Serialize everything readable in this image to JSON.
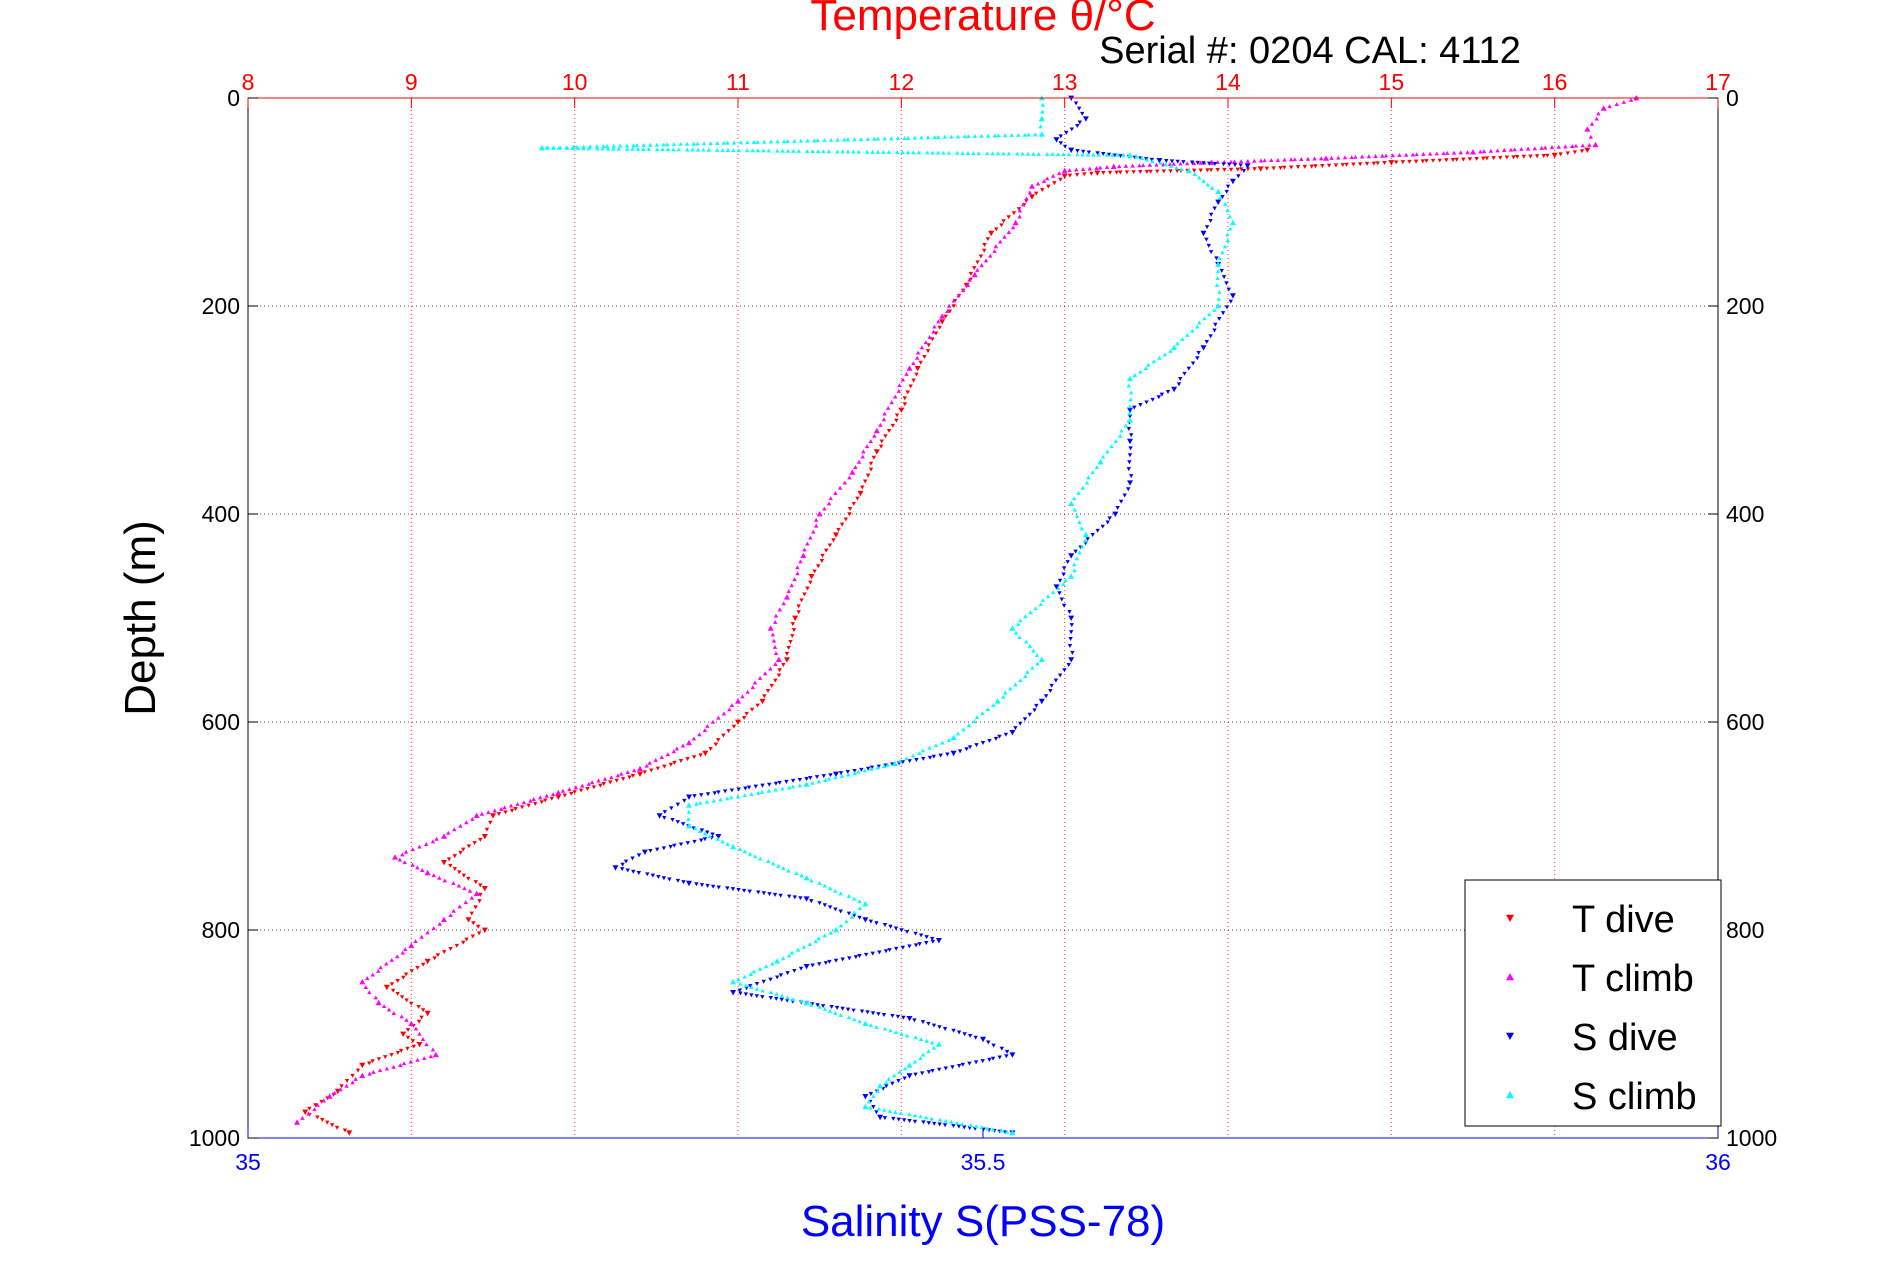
{
  "chart_data": {
    "type": "scatter",
    "title": "Temperature θ/°C",
    "subtitle": "Serial #: 0204  CAL: 4112",
    "xlabel": "Salinity S(PSS-78)",
    "ylabel": "Depth (m)",
    "temperature_axis": {
      "position": "top",
      "range": [
        8,
        17
      ],
      "ticks": [
        8,
        9,
        10,
        11,
        12,
        13,
        14,
        15,
        16,
        17
      ],
      "color": "#ff0000"
    },
    "salinity_axis": {
      "position": "bottom",
      "range": [
        35,
        36
      ],
      "ticks": [
        35,
        35.5,
        36
      ],
      "color": "#0000ff"
    },
    "depth_axis": {
      "range": [
        0,
        1000
      ],
      "reversed": true,
      "ticks": [
        0,
        200,
        400,
        600,
        800,
        1000
      ],
      "color": "#000000"
    },
    "grid": true,
    "legend_position": "bottom-right",
    "series": [
      {
        "name": "T dive",
        "axis": "temperature",
        "color": "#ff0000",
        "marker": "triangle-down",
        "points": [
          [
            16.2,
            50
          ],
          [
            16.0,
            55
          ],
          [
            15.0,
            62
          ],
          [
            14.2,
            68
          ],
          [
            13.2,
            72
          ],
          [
            13.0,
            75
          ],
          [
            12.8,
            95
          ],
          [
            12.55,
            130
          ],
          [
            12.4,
            180
          ],
          [
            12.25,
            215
          ],
          [
            12.1,
            260
          ],
          [
            12.0,
            300
          ],
          [
            11.85,
            340
          ],
          [
            11.75,
            380
          ],
          [
            11.6,
            420
          ],
          [
            11.45,
            460
          ],
          [
            11.35,
            500
          ],
          [
            11.3,
            540
          ],
          [
            11.15,
            580
          ],
          [
            11.0,
            600
          ],
          [
            10.8,
            630
          ],
          [
            10.4,
            650
          ],
          [
            9.9,
            672
          ],
          [
            9.5,
            690
          ],
          [
            9.45,
            710
          ],
          [
            9.2,
            735
          ],
          [
            9.45,
            760
          ],
          [
            9.35,
            790
          ],
          [
            9.45,
            800
          ],
          [
            9.1,
            830
          ],
          [
            8.85,
            855
          ],
          [
            9.1,
            880
          ],
          [
            8.95,
            900
          ],
          [
            9.05,
            910
          ],
          [
            8.7,
            930
          ],
          [
            8.55,
            955
          ],
          [
            8.35,
            975
          ],
          [
            8.62,
            995
          ]
        ]
      },
      {
        "name": "T climb",
        "axis": "temperature",
        "color": "#ff00ff",
        "marker": "triangle-up",
        "points": [
          [
            16.5,
            0
          ],
          [
            16.3,
            10
          ],
          [
            16.2,
            30
          ],
          [
            16.25,
            45
          ],
          [
            15.5,
            52
          ],
          [
            14.6,
            58
          ],
          [
            13.9,
            62
          ],
          [
            13.3,
            66
          ],
          [
            13.0,
            70
          ],
          [
            12.8,
            85
          ],
          [
            12.7,
            120
          ],
          [
            12.45,
            170
          ],
          [
            12.25,
            210
          ],
          [
            12.05,
            260
          ],
          [
            11.85,
            320
          ],
          [
            11.7,
            360
          ],
          [
            11.5,
            400
          ],
          [
            11.4,
            440
          ],
          [
            11.3,
            480
          ],
          [
            11.2,
            510
          ],
          [
            11.25,
            540
          ],
          [
            11.0,
            580
          ],
          [
            10.7,
            620
          ],
          [
            10.4,
            645
          ],
          [
            9.9,
            668
          ],
          [
            9.4,
            690
          ],
          [
            9.2,
            710
          ],
          [
            8.9,
            730
          ],
          [
            9.1,
            745
          ],
          [
            9.4,
            765
          ],
          [
            9.2,
            790
          ],
          [
            9.0,
            815
          ],
          [
            8.7,
            850
          ],
          [
            8.8,
            870
          ],
          [
            9.0,
            890
          ],
          [
            9.15,
            920
          ],
          [
            8.7,
            940
          ],
          [
            8.5,
            960
          ],
          [
            8.3,
            985
          ]
        ]
      },
      {
        "name": "S dive",
        "axis": "salinity",
        "color": "#0000ff",
        "marker": "triangle-down",
        "points": [
          [
            35.56,
            0
          ],
          [
            35.57,
            20
          ],
          [
            35.55,
            40
          ],
          [
            35.56,
            50
          ],
          [
            35.62,
            60
          ],
          [
            35.68,
            65
          ],
          [
            35.67,
            80
          ],
          [
            35.66,
            100
          ],
          [
            35.65,
            130
          ],
          [
            35.66,
            160
          ],
          [
            35.67,
            190
          ],
          [
            35.65,
            240
          ],
          [
            35.63,
            280
          ],
          [
            35.6,
            300
          ],
          [
            35.6,
            330
          ],
          [
            35.6,
            370
          ],
          [
            35.59,
            400
          ],
          [
            35.56,
            440
          ],
          [
            35.55,
            470
          ],
          [
            35.56,
            500
          ],
          [
            35.56,
            540
          ],
          [
            35.54,
            580
          ],
          [
            35.52,
            610
          ],
          [
            35.48,
            630
          ],
          [
            35.4,
            650
          ],
          [
            35.3,
            672
          ],
          [
            35.28,
            690
          ],
          [
            35.32,
            710
          ],
          [
            35.27,
            725
          ],
          [
            35.25,
            740
          ],
          [
            35.3,
            755
          ],
          [
            35.38,
            770
          ],
          [
            35.42,
            790
          ],
          [
            35.47,
            810
          ],
          [
            35.38,
            835
          ],
          [
            35.33,
            860
          ],
          [
            35.45,
            885
          ],
          [
            35.5,
            905
          ],
          [
            35.52,
            920
          ],
          [
            35.45,
            940
          ],
          [
            35.42,
            960
          ],
          [
            35.43,
            980
          ],
          [
            35.52,
            995
          ]
        ]
      },
      {
        "name": "S climb",
        "axis": "salinity",
        "color": "#00ffff",
        "marker": "triangle-up",
        "points": [
          [
            35.54,
            0
          ],
          [
            35.54,
            20
          ],
          [
            35.54,
            35
          ],
          [
            35.2,
            48
          ],
          [
            35.6,
            55
          ],
          [
            35.64,
            70
          ],
          [
            35.66,
            90
          ],
          [
            35.67,
            120
          ],
          [
            35.66,
            160
          ],
          [
            35.66,
            200
          ],
          [
            35.63,
            240
          ],
          [
            35.6,
            270
          ],
          [
            35.6,
            310
          ],
          [
            35.58,
            350
          ],
          [
            35.56,
            390
          ],
          [
            35.57,
            420
          ],
          [
            35.56,
            460
          ],
          [
            35.52,
            510
          ],
          [
            35.54,
            540
          ],
          [
            35.51,
            580
          ],
          [
            35.48,
            615
          ],
          [
            35.44,
            640
          ],
          [
            35.38,
            660
          ],
          [
            35.3,
            680
          ],
          [
            35.3,
            700
          ],
          [
            35.33,
            720
          ],
          [
            35.38,
            750
          ],
          [
            35.42,
            775
          ],
          [
            35.4,
            800
          ],
          [
            35.36,
            830
          ],
          [
            35.33,
            850
          ],
          [
            35.38,
            870
          ],
          [
            35.42,
            890
          ],
          [
            35.47,
            910
          ],
          [
            35.45,
            930
          ],
          [
            35.43,
            950
          ],
          [
            35.42,
            970
          ],
          [
            35.52,
            995
          ]
        ]
      }
    ]
  }
}
